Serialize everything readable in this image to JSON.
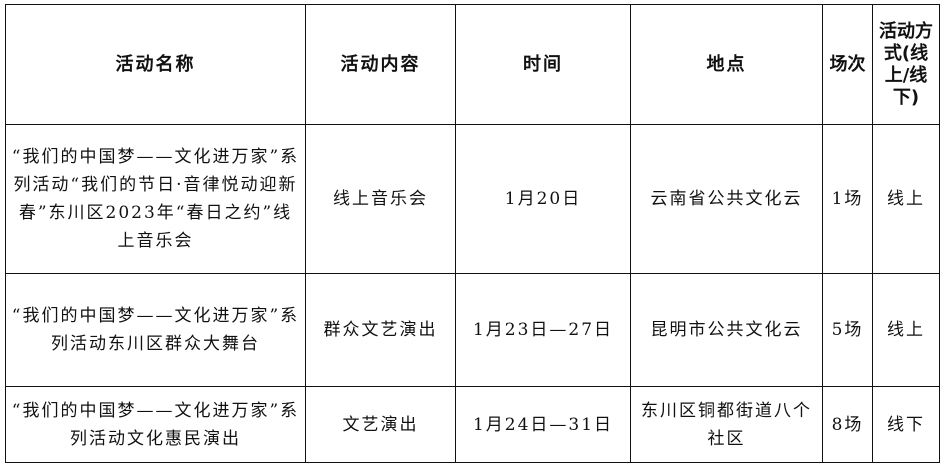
{
  "headers": [
    "活动名称",
    "活动内容",
    "时间",
    "地点",
    "场次",
    "活动方式(线上/线下)"
  ],
  "rows": [
    {
      "name": "“我们的中国梦——文化进万家”系列活动“我们的节日·音律悦动迎新春”东川区2023年“春日之约”线上音乐会",
      "content": "线上音乐会",
      "time": "1月20日",
      "place": "云南省公共文化云",
      "sessions": "1场",
      "mode": "线上"
    },
    {
      "name": "“我们的中国梦——文化进万家”系列活动东川区群众大舞台",
      "content": "群众文艺演出",
      "time": "1月23日—27日",
      "place": "昆明市公共文化云",
      "sessions": "5场",
      "mode": "线上"
    },
    {
      "name": "“我们的中国梦——文化进万家”系列活动文化惠民演出",
      "content": "文艺演出",
      "time": "1月24日—31日",
      "place": "东川区铜都街道八个社区",
      "sessions": "8场",
      "mode": "线下"
    }
  ]
}
